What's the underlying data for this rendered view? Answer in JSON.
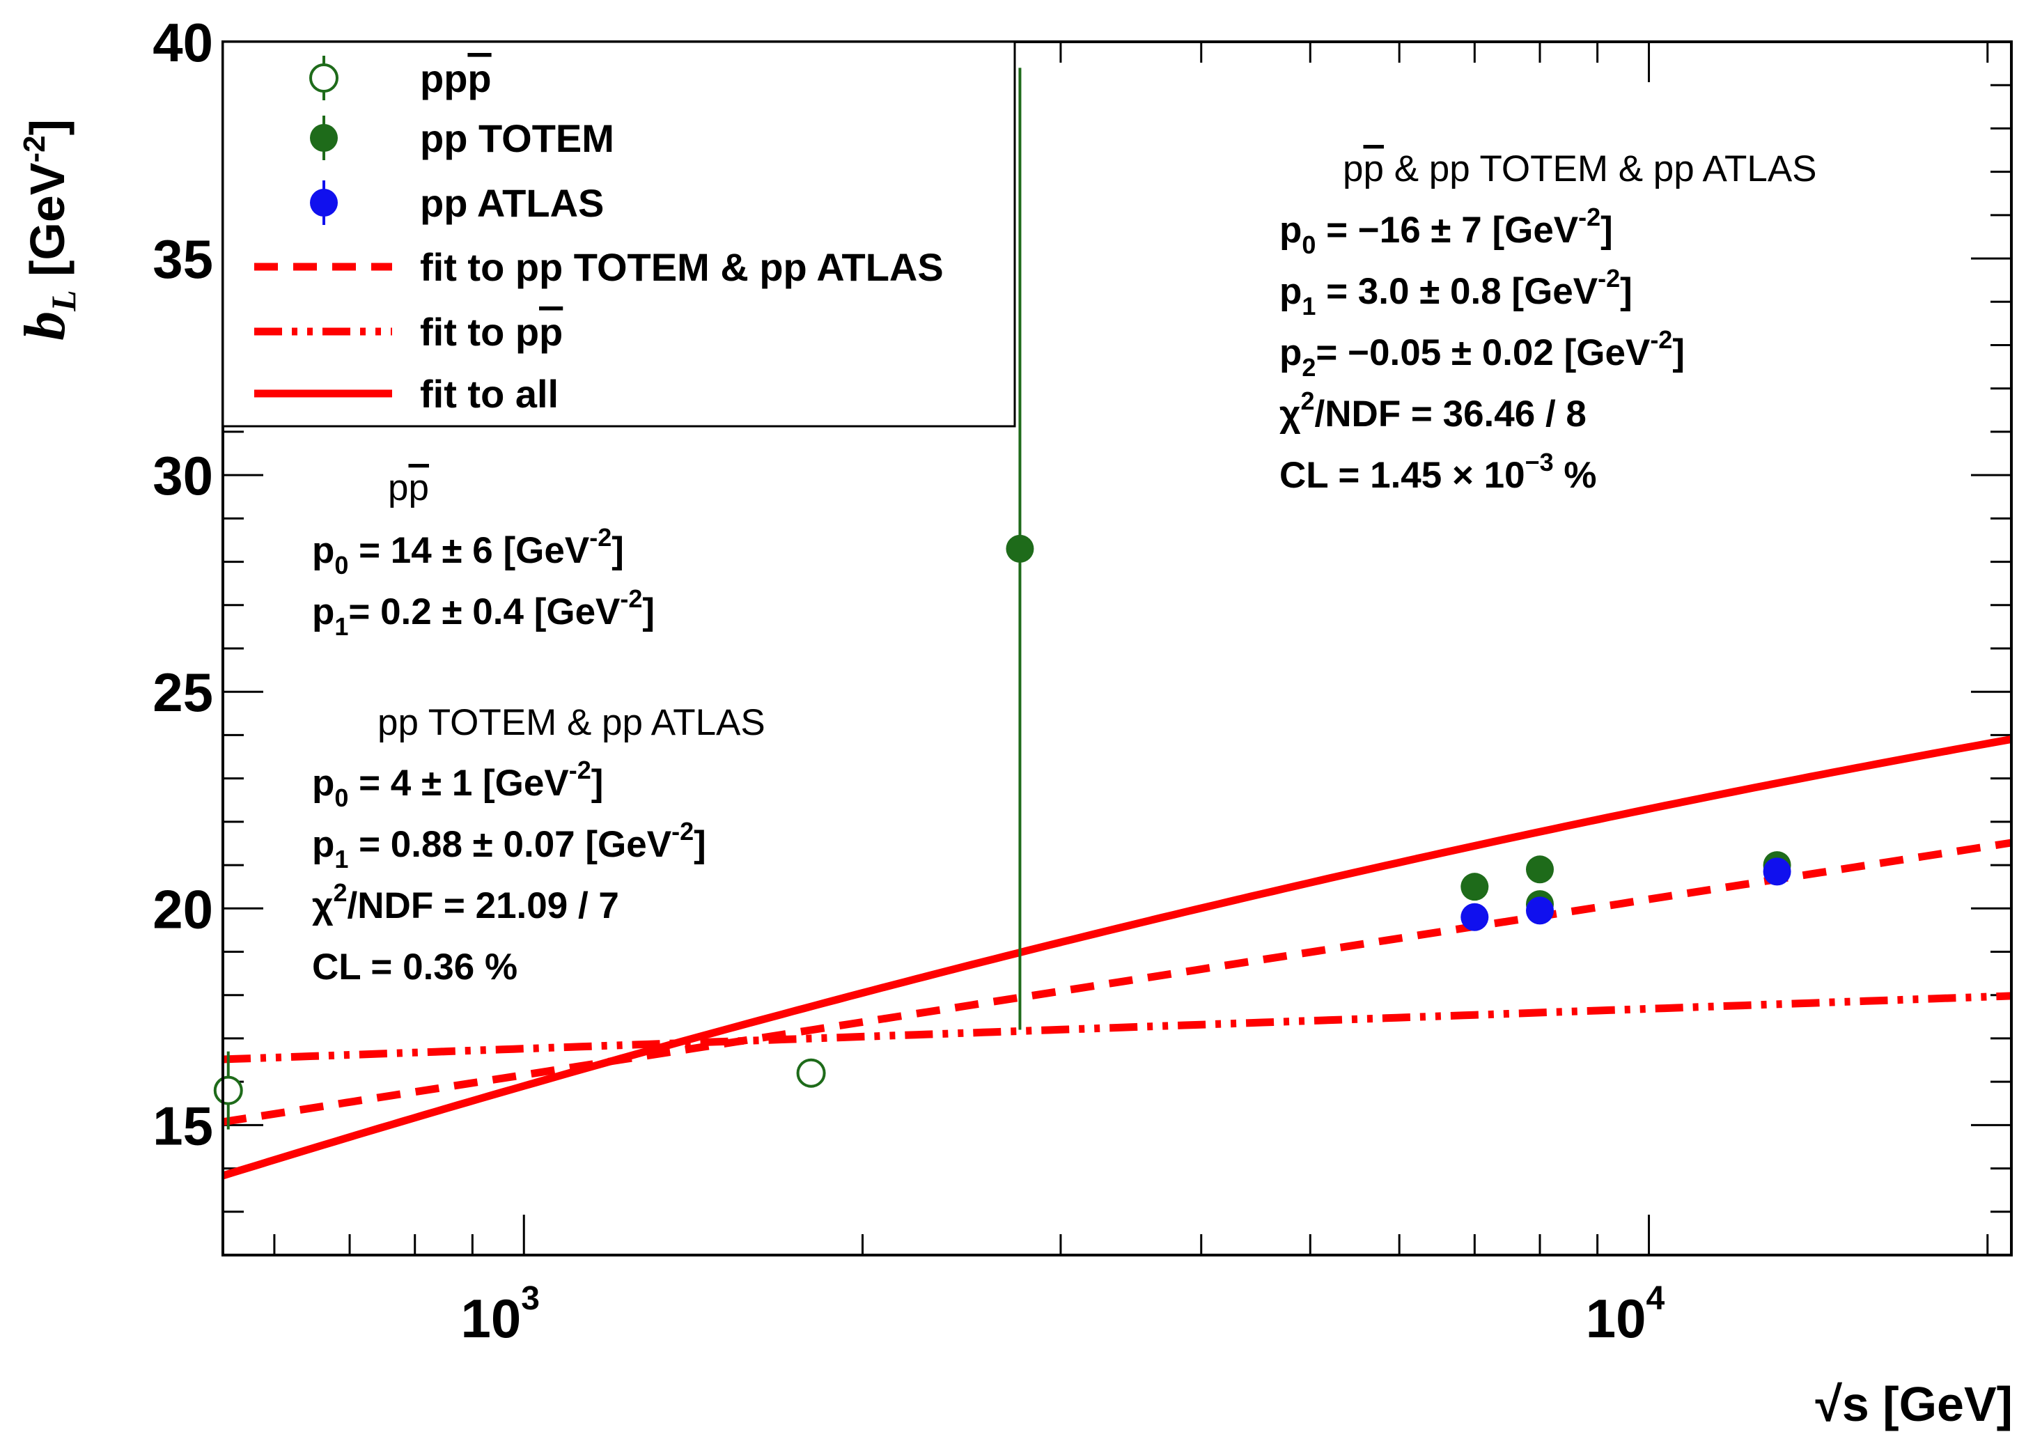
{
  "chart_data": {
    "type": "scatter",
    "title": "",
    "xlabel": "√s [GeV]",
    "ylabel_main": "b",
    "ylabel_sub": "L",
    "ylabel_unit": " [GeV",
    "ylabel_unit_exp": "-2",
    "ylabel_unit_close": "]",
    "xscale": "log",
    "xlim": [
      540,
      21000
    ],
    "ylim": [
      12.0,
      40.0
    ],
    "x_ticks": [
      {
        "value": 1000,
        "base": "10",
        "exp": "3"
      },
      {
        "value": 10000,
        "base": "10",
        "exp": "4"
      }
    ],
    "y_ticks": [
      15,
      20,
      25,
      30,
      35,
      40
    ],
    "series": [
      {
        "name": "pp̄",
        "marker": "open-circle",
        "color": "#1e6b1a",
        "points": [
          {
            "x": 546,
            "y": 15.8,
            "err": 0.9
          },
          {
            "x": 1800,
            "y": 16.2,
            "err": 0.25
          }
        ]
      },
      {
        "name": "pp TOTEM",
        "marker": "filled-circle",
        "color": "#1e6b1a",
        "points": [
          {
            "x": 2760,
            "y": 28.3,
            "err": 11.1
          },
          {
            "x": 7000,
            "y": 20.5,
            "err": 0.2
          },
          {
            "x": 8000,
            "y": 20.9,
            "err": 0.3
          },
          {
            "x": 8000,
            "y": 20.1,
            "err": 0.2
          },
          {
            "x": 13000,
            "y": 21.0,
            "err": 0.2
          }
        ]
      },
      {
        "name": "pp ATLAS",
        "marker": "filled-circle",
        "color": "#1010ee",
        "points": [
          {
            "x": 7000,
            "y": 19.8,
            "err": 0.1
          },
          {
            "x": 8000,
            "y": 19.95,
            "err": 0.1
          },
          {
            "x": 13000,
            "y": 20.85,
            "err": 0.1
          }
        ]
      }
    ],
    "fits": [
      {
        "name": "fit to pp TOTEM & pp ATLAS",
        "style": "dashed",
        "color": "#ff0000",
        "form": "p0 + p1*ln(s)",
        "p0": 4.0,
        "p1": 0.88
      },
      {
        "name": "fit to pp̄",
        "style": "dash-dot-dot",
        "color": "#ff0000",
        "form": "p0 + p1*ln(s)",
        "p0": 14.0,
        "p1": 0.2
      },
      {
        "name": "fit to all",
        "style": "solid",
        "color": "#ff0000",
        "form": "p0 + p1*ln(s) + p2*ln(s)^2",
        "p0": -16.0,
        "p1": 3.0,
        "p2": -0.05
      }
    ],
    "legend": {
      "position": "top-left",
      "entries": [
        {
          "pre": "pp",
          "bar": "p",
          "post": ""
        },
        {
          "pre": "pp TOTEM",
          "bar": "",
          "post": ""
        },
        {
          "pre": "pp ATLAS",
          "bar": "",
          "post": ""
        },
        {
          "pre": "fit to pp TOTEM & pp ATLAS",
          "bar": "",
          "post": ""
        },
        {
          "pre": "fit to p",
          "bar": "p",
          "post": ""
        },
        {
          "pre": "fit to all",
          "bar": "",
          "post": ""
        }
      ]
    },
    "annotations": {
      "ppbar": {
        "head": {
          "pre": "p",
          "bar": "p",
          "post": ""
        },
        "lines": [
          {
            "a": "p",
            "sub": "0",
            "b": " = 14 ± 6 [GeV",
            "sup": "-2",
            "c": "]"
          },
          {
            "a": "p",
            "sub": "1",
            "b": "= 0.2 ± 0.4 [GeV",
            "sup": "-2",
            "c": "]"
          }
        ]
      },
      "pp": {
        "head": {
          "pre": "pp TOTEM & pp ATLAS",
          "bar": "",
          "post": ""
        },
        "lines": [
          {
            "a": "p",
            "sub": "0",
            "b": " = 4 ± 1 [GeV",
            "sup": "-2",
            "c": "]"
          },
          {
            "a": "p",
            "sub": "1",
            "b": " = 0.88 ± 0.07 [GeV",
            "sup": "-2",
            "c": "]"
          },
          {
            "a": "χ",
            "sup1": "2",
            "b": "/NDF = 21.09 / 7"
          },
          {
            "a": "CL = 0.36 %"
          }
        ]
      },
      "all": {
        "head": {
          "pre": "p",
          "bar": "p",
          "post": " & pp TOTEM & pp ATLAS"
        },
        "lines": [
          {
            "a": "p",
            "sub": "0",
            "b": " = −16 ± 7 [GeV",
            "sup": "-2",
            "c": "]"
          },
          {
            "a": "p",
            "sub": "1",
            "b": " = 3.0 ± 0.8 [GeV",
            "sup": "-2",
            "c": "]"
          },
          {
            "a": "p",
            "sub": "2",
            "b": "= −0.05 ± 0.02 [GeV",
            "sup": "-2",
            "c": "]"
          },
          {
            "a": "χ",
            "sup1": "2",
            "b": "/NDF = 36.46 / 8"
          },
          {
            "a": "CL = 1.45 × 10",
            "sup": "−3",
            "c": " %"
          }
        ]
      }
    }
  }
}
